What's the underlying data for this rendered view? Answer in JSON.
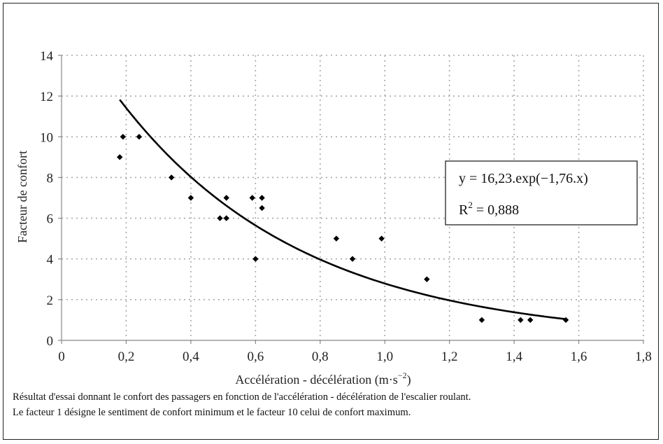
{
  "chart_data": {
    "type": "scatter",
    "xlabel_main": "Accélération - décélération (m·s",
    "xlabel_sup": "−2",
    "xlabel_close": ")",
    "ylabel": "Facteur de confort",
    "xlim": [
      0,
      1.8
    ],
    "ylim": [
      0,
      14
    ],
    "x_ticks": [
      0,
      0.2,
      0.4,
      0.6,
      0.8,
      1.0,
      1.2,
      1.4,
      1.6,
      1.8
    ],
    "x_tick_labels": [
      "0",
      "0,2",
      "0,4",
      "0,6",
      "0,8",
      "1,0",
      "1,2",
      "1,4",
      "1,6",
      "1,8"
    ],
    "y_ticks": [
      0,
      2,
      4,
      6,
      8,
      10,
      12,
      14
    ],
    "y_tick_labels": [
      "0",
      "2",
      "4",
      "6",
      "8",
      "10",
      "12",
      "14"
    ],
    "grid": true,
    "points": [
      {
        "x": 0.18,
        "y": 9
      },
      {
        "x": 0.19,
        "y": 10
      },
      {
        "x": 0.24,
        "y": 10
      },
      {
        "x": 0.34,
        "y": 8
      },
      {
        "x": 0.4,
        "y": 7
      },
      {
        "x": 0.49,
        "y": 6
      },
      {
        "x": 0.51,
        "y": 7
      },
      {
        "x": 0.51,
        "y": 6
      },
      {
        "x": 0.59,
        "y": 7
      },
      {
        "x": 0.6,
        "y": 4
      },
      {
        "x": 0.62,
        "y": 7
      },
      {
        "x": 0.62,
        "y": 6.5
      },
      {
        "x": 0.85,
        "y": 5
      },
      {
        "x": 0.9,
        "y": 4
      },
      {
        "x": 0.99,
        "y": 5
      },
      {
        "x": 1.13,
        "y": 3
      },
      {
        "x": 1.3,
        "y": 1
      },
      {
        "x": 1.42,
        "y": 1
      },
      {
        "x": 1.45,
        "y": 1
      },
      {
        "x": 1.56,
        "y": 1
      }
    ],
    "trendline": {
      "type": "exponential",
      "a": 16.23,
      "b": -1.76,
      "x_range": [
        0.18,
        1.56
      ]
    },
    "equation": "y = 16,23.exp(−1,76.x)",
    "r_squared_main": "R",
    "r_squared_sup": "2",
    "r_squared_value": " = 0,888",
    "colors": {
      "marker": "#000000",
      "grid": "#a8a8a8",
      "line": "#000000",
      "axis": "#888888"
    }
  },
  "caption": {
    "line1": "Résultat d'essai donnant le confort des passagers en fonction de l'accélération - décélération de l'escalier roulant.",
    "line2": "Le facteur 1 désigne le sentiment de confort minimum et le facteur 10 celui de confort maximum."
  }
}
